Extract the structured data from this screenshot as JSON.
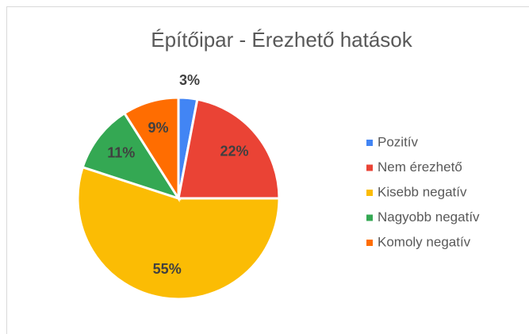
{
  "chart_data": {
    "type": "pie",
    "title": "Építőipar - Érezhető hatások",
    "categories": [
      "Pozitív",
      "Nem érezhető",
      "Kisebb negatív",
      "Nagyobb negatív",
      "Komoly negatív"
    ],
    "values": [
      3,
      22,
      55,
      11,
      9
    ],
    "value_labels": [
      "3%",
      "22%",
      "55%",
      "11%",
      "9%"
    ],
    "colors": [
      "#4285f4",
      "#ea4335",
      "#fbbc04",
      "#34a853",
      "#ff6d01"
    ],
    "legend": "right"
  }
}
